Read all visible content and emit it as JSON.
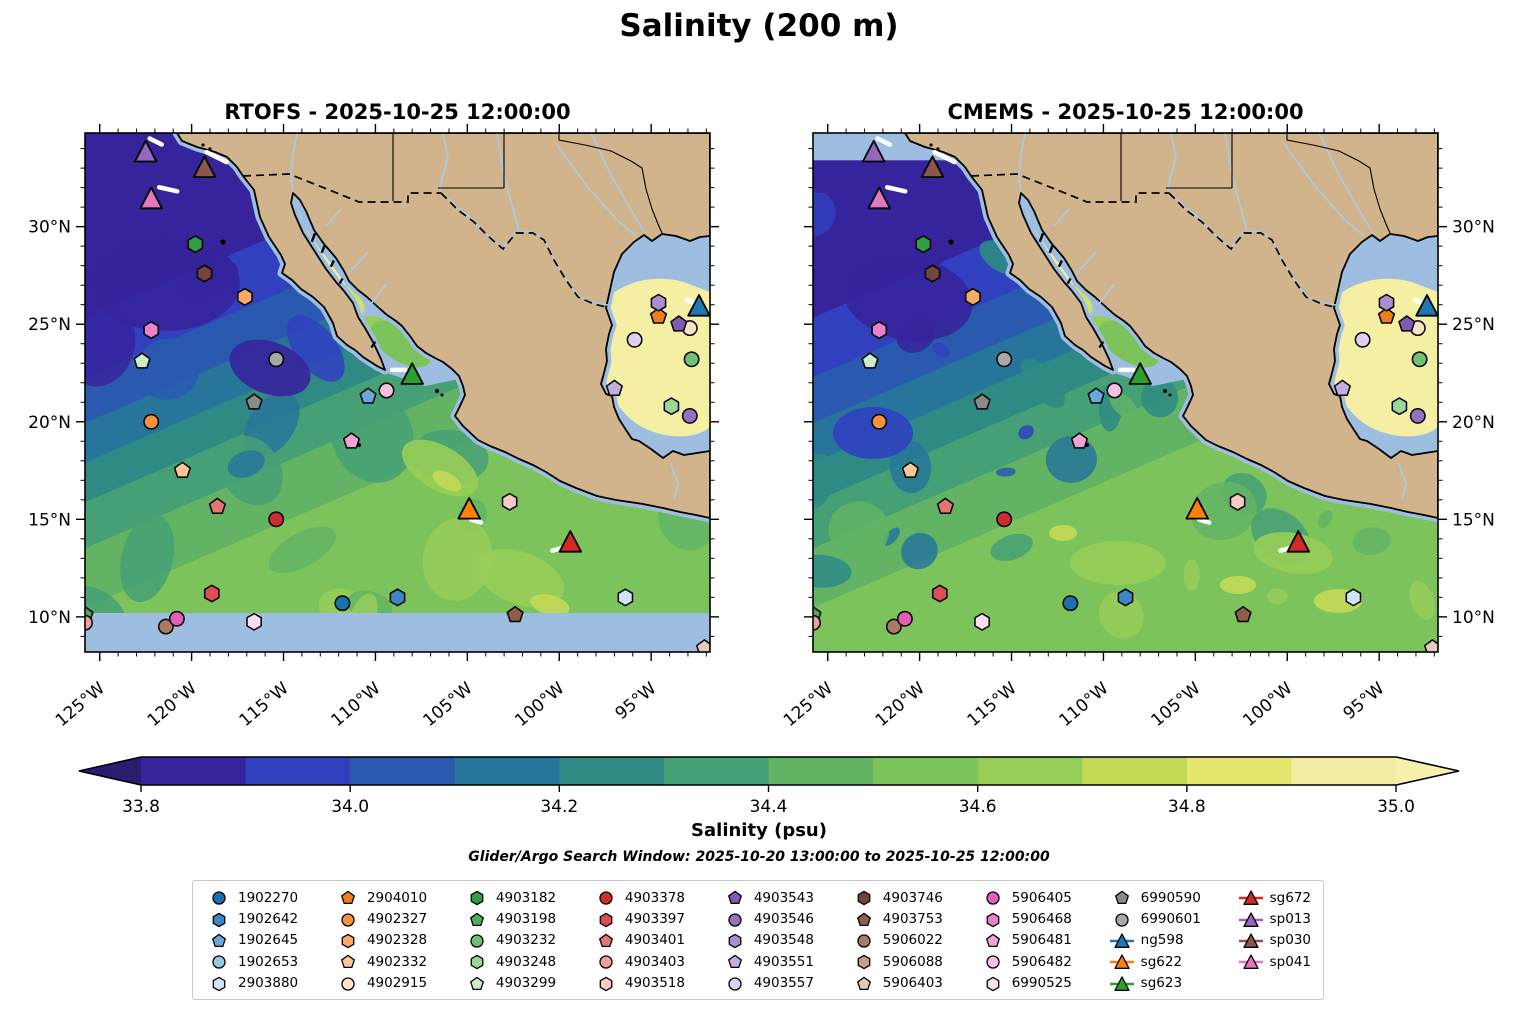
{
  "title": "Salinity (200 m)",
  "subtitle": "Glider/Argo Search Window: 2025-10-20 13:00:00 to 2025-10-25 12:00:00",
  "panels": [
    {
      "id": "rtofs",
      "title": "RTOFS - 2025-10-25 12:00:00",
      "nodata_band": {
        "below_lat": 10.2
      }
    },
    {
      "id": "cmems",
      "title": "CMEMS - 2025-10-25 12:00:00",
      "nodata_band": {
        "above_lat": 33.4
      }
    }
  ],
  "axes": {
    "extent": {
      "lon_min": -125.8,
      "lon_max": -91.8,
      "lat_min": 8.2,
      "lat_max": 34.8
    },
    "lon_ticks": [
      {
        "value": -125,
        "label": "125°W"
      },
      {
        "value": -120,
        "label": "120°W"
      },
      {
        "value": -115,
        "label": "115°W"
      },
      {
        "value": -110,
        "label": "110°W"
      },
      {
        "value": -105,
        "label": "105°W"
      },
      {
        "value": -100,
        "label": "100°W"
      },
      {
        "value": -95,
        "label": "95°W"
      }
    ],
    "lat_ticks": [
      {
        "value": 30,
        "label": "30°N"
      },
      {
        "value": 25,
        "label": "25°N"
      },
      {
        "value": 20,
        "label": "20°N"
      },
      {
        "value": 15,
        "label": "15°N"
      },
      {
        "value": 10,
        "label": "10°N"
      }
    ],
    "minor_tick_step_deg": 1
  },
  "colorbar": {
    "label": "Salinity (psu)",
    "vmin": 33.8,
    "vmax": 35.0,
    "tick_labels": [
      "33.8",
      "34.0",
      "34.2",
      "34.4",
      "34.6",
      "34.8",
      "35.0"
    ],
    "tick_values": [
      33.8,
      34.0,
      34.2,
      34.4,
      34.6,
      34.8,
      35.0
    ],
    "segment_colors": [
      "#36249c",
      "#3040bf",
      "#2a59b0",
      "#27759b",
      "#2f8a85",
      "#46a076",
      "#62b464",
      "#7dc35c",
      "#97ce58",
      "#c3da55",
      "#e4e66e",
      "#f2eda2"
    ],
    "under_arrow_color": "#2a1c70",
    "over_arrow_color": "#f7f1ad"
  },
  "map_colors": {
    "land": "#d2b48c",
    "no_data_ocean": "#9ebee1",
    "coastline": "#000000",
    "river": "#a9cbe8",
    "gulf_of_mexico_core": "#f5efa4",
    "glider_track": "#ffffff"
  },
  "chart_data": {
    "type": "heatmap",
    "description": "Two-panel comparison of modeled salinity at 200 m depth (RTOFS vs CMEMS) over the NE Pacific, Gulf of California and western Gulf of Mexico, with Argo float and glider positions overlaid.",
    "valid_time": "2025-10-25 12:00:00",
    "field": "Salinity (psu)",
    "value_range": [
      33.8,
      35.0
    ],
    "extent": {
      "lon": [
        -125.8,
        -91.8
      ],
      "lat": [
        8.2,
        34.8
      ]
    },
    "platforms": [
      {
        "id": "1902270",
        "kind": "argo",
        "shape": "circle",
        "color": "#1a6faf",
        "lon": -111.8,
        "lat": 10.7
      },
      {
        "id": "1902642",
        "kind": "argo",
        "shape": "hexagon",
        "color": "#3d88c4",
        "lon": -108.8,
        "lat": 11.0
      },
      {
        "id": "1902645",
        "kind": "argo",
        "shape": "pentagon",
        "color": "#69a8d8",
        "lon": -110.4,
        "lat": 21.3
      },
      {
        "id": "1902653",
        "kind": "argo",
        "shape": "circle",
        "color": "#97c6e6",
        "lon": null,
        "lat": null
      },
      {
        "id": "2903880",
        "kind": "argo",
        "shape": "hexagon",
        "color": "#cfe5f5",
        "lon": -96.4,
        "lat": 11.0
      },
      {
        "id": "2904010",
        "kind": "argo",
        "shape": "pentagon",
        "color": "#ee7f1d",
        "lon": -94.6,
        "lat": 25.4
      },
      {
        "id": "4902327",
        "kind": "argo",
        "shape": "circle",
        "color": "#f6923f",
        "lon": -122.2,
        "lat": 20.0
      },
      {
        "id": "4902328",
        "kind": "argo",
        "shape": "hexagon",
        "color": "#f9a964",
        "lon": -117.1,
        "lat": 26.4
      },
      {
        "id": "4902332",
        "kind": "argo",
        "shape": "pentagon",
        "color": "#fcc794",
        "lon": -120.5,
        "lat": 17.5
      },
      {
        "id": "4902915",
        "kind": "argo",
        "shape": "circle",
        "color": "#fde4c6",
        "lon": -92.9,
        "lat": 24.8
      },
      {
        "id": "4903182",
        "kind": "argo",
        "shape": "hexagon",
        "color": "#2f9e44",
        "lon": -119.8,
        "lat": 29.1
      },
      {
        "id": "4903198",
        "kind": "argo",
        "shape": "pentagon",
        "color": "#4fae58",
        "lon": -125.8,
        "lat": 10.1
      },
      {
        "id": "4903232",
        "kind": "argo",
        "shape": "circle",
        "color": "#72c173",
        "lon": -92.8,
        "lat": 23.2
      },
      {
        "id": "4903248",
        "kind": "argo",
        "shape": "hexagon",
        "color": "#9dd69b",
        "lon": -93.9,
        "lat": 20.8
      },
      {
        "id": "4903299",
        "kind": "argo",
        "shape": "pentagon",
        "color": "#cdeccb",
        "lon": -122.7,
        "lat": 23.1
      },
      {
        "id": "4903378",
        "kind": "argo",
        "shape": "circle",
        "color": "#cf2d2d",
        "lon": -115.4,
        "lat": 15.0
      },
      {
        "id": "4903397",
        "kind": "argo",
        "shape": "hexagon",
        "color": "#db504e",
        "lon": -118.9,
        "lat": 11.2
      },
      {
        "id": "4903401",
        "kind": "argo",
        "shape": "pentagon",
        "color": "#e77470",
        "lon": -118.6,
        "lat": 15.65
      },
      {
        "id": "4903403",
        "kind": "argo",
        "shape": "circle",
        "color": "#f0a19b",
        "lon": -125.8,
        "lat": 9.7
      },
      {
        "id": "4903518",
        "kind": "argo",
        "shape": "hexagon",
        "color": "#f8c9c5",
        "lon": -102.7,
        "lat": 15.9
      },
      {
        "id": "4903543",
        "kind": "argo",
        "shape": "pentagon",
        "color": "#8059b3",
        "lon": -93.5,
        "lat": 25.0
      },
      {
        "id": "4903546",
        "kind": "argo",
        "shape": "circle",
        "color": "#9372c1",
        "lon": -92.9,
        "lat": 20.3
      },
      {
        "id": "4903548",
        "kind": "argo",
        "shape": "hexagon",
        "color": "#a98fd0",
        "lon": -94.6,
        "lat": 26.1
      },
      {
        "id": "4903551",
        "kind": "argo",
        "shape": "pentagon",
        "color": "#c3aee0",
        "lon": -97.0,
        "lat": 21.7
      },
      {
        "id": "4903557",
        "kind": "argo",
        "shape": "circle",
        "color": "#decff0",
        "lon": -95.9,
        "lat": 24.2
      },
      {
        "id": "4903746",
        "kind": "argo",
        "shape": "hexagon",
        "color": "#74453a",
        "lon": -119.3,
        "lat": 27.6
      },
      {
        "id": "4903753",
        "kind": "argo",
        "shape": "pentagon",
        "color": "#8f5d49",
        "lon": -102.4,
        "lat": 10.1
      },
      {
        "id": "5906022",
        "kind": "argo",
        "shape": "circle",
        "color": "#aa7a63",
        "lon": -121.4,
        "lat": 9.5
      },
      {
        "id": "5906088",
        "kind": "argo",
        "shape": "hexagon",
        "color": "#c69e8b",
        "lon": null,
        "lat": null
      },
      {
        "id": "5906403",
        "kind": "argo",
        "shape": "pentagon",
        "color": "#e5cab9",
        "lon": -92.1,
        "lat": 8.4
      },
      {
        "id": "5906405",
        "kind": "argo",
        "shape": "circle",
        "color": "#e15fb9",
        "lon": -120.8,
        "lat": 9.9
      },
      {
        "id": "5906468",
        "kind": "argo",
        "shape": "hexagon",
        "color": "#e982c6",
        "lon": -122.2,
        "lat": 24.7
      },
      {
        "id": "5906481",
        "kind": "argo",
        "shape": "pentagon",
        "color": "#f0a2d4",
        "lon": -111.3,
        "lat": 19.0
      },
      {
        "id": "5906482",
        "kind": "argo",
        "shape": "circle",
        "color": "#f6c0e3",
        "lon": -109.4,
        "lat": 21.6
      },
      {
        "id": "6990525",
        "kind": "argo",
        "shape": "hexagon",
        "color": "#fbdef1",
        "lon": -116.6,
        "lat": 9.75
      },
      {
        "id": "6990590",
        "kind": "argo",
        "shape": "pentagon",
        "color": "#8a8a8a",
        "lon": -116.6,
        "lat": 21.0
      },
      {
        "id": "6990601",
        "kind": "argo",
        "shape": "circle",
        "color": "#a8a8a8",
        "lon": -115.4,
        "lat": 23.2
      },
      {
        "id": "ng598",
        "kind": "glider",
        "shape": "triangle",
        "color": "#1f77b4",
        "lon": -92.4,
        "lat": 25.9,
        "track": [
          -12,
          -7,
          -4,
          -3
        ]
      },
      {
        "id": "sg622",
        "kind": "glider",
        "shape": "triangle",
        "color": "#ff7f0e",
        "lon": -104.9,
        "lat": 15.5,
        "track": [
          2,
          10,
          12,
          13
        ]
      },
      {
        "id": "sg623",
        "kind": "glider",
        "shape": "triangle",
        "color": "#2ca02c",
        "lon": -108.0,
        "lat": 22.4,
        "track": [
          -20,
          -5,
          -7,
          -5
        ]
      },
      {
        "id": "sg672",
        "kind": "glider",
        "shape": "triangle",
        "color": "#d62728",
        "lon": -99.4,
        "lat": 13.8,
        "track": [
          -18,
          8,
          -7,
          5
        ]
      },
      {
        "id": "sp013",
        "kind": "glider",
        "shape": "triangle",
        "color": "#9467bd",
        "lon": -122.5,
        "lat": 33.8,
        "track": [
          4,
          -14,
          16,
          -8
        ]
      },
      {
        "id": "sp030",
        "kind": "glider",
        "shape": "triangle",
        "color": "#8c564b",
        "lon": -119.3,
        "lat": 33.0,
        "track": [
          2,
          -16,
          22,
          -6
        ]
      },
      {
        "id": "sp041",
        "kind": "glider",
        "shape": "triangle",
        "color": "#e377c2",
        "lon": -122.2,
        "lat": 31.4,
        "track": [
          8,
          -12,
          26,
          -8
        ]
      }
    ]
  },
  "legend": {
    "items_per_column": 5
  }
}
